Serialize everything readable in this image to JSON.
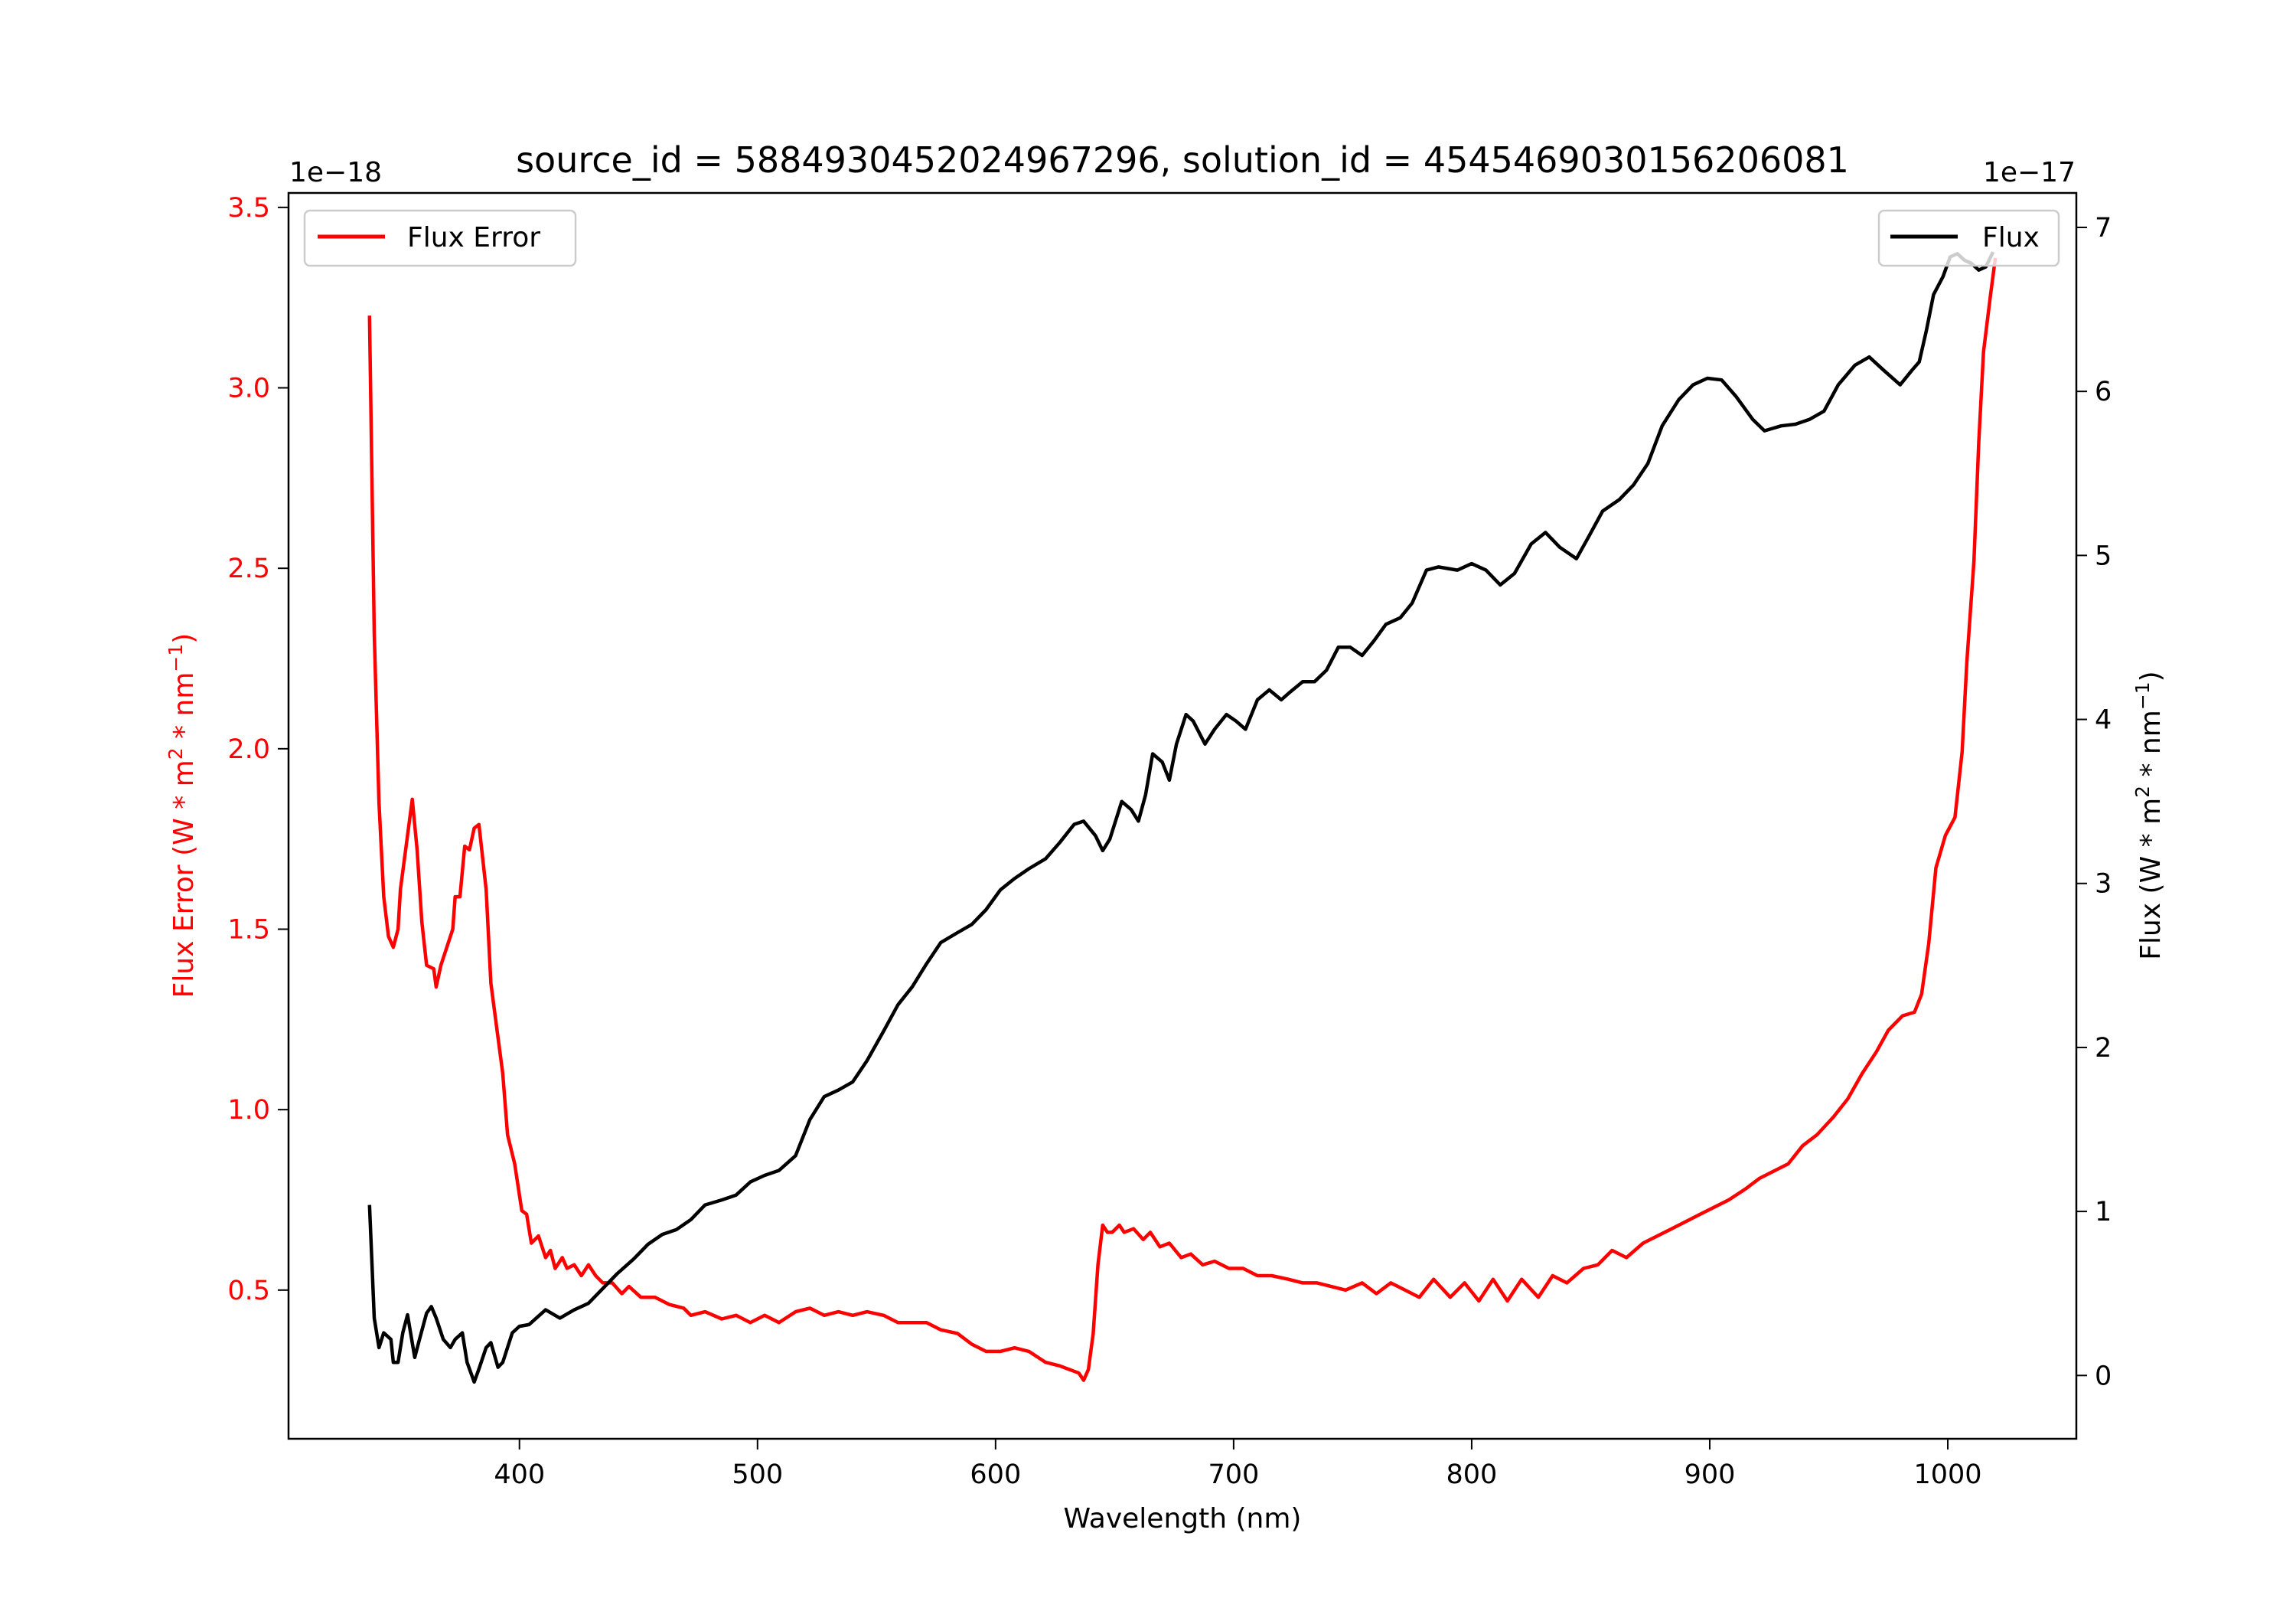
{
  "chart_data": {
    "type": "line",
    "title": "source_id = 5884930452024967296, solution_id = 4545469030156206081",
    "xlabel": "Wavelength (nm)",
    "xlim": [
      303,
      1054
    ],
    "xticks": [
      400,
      500,
      600,
      700,
      800,
      900,
      1000
    ],
    "left_axis": {
      "label_parts": {
        "prefix": "Flux Error (W * m",
        "sup1": "2",
        "mid": " * nm",
        "sup2": "−1",
        "suffix": ")"
      },
      "offset_text": "1e−18",
      "ylim": [
        0.088,
        3.54
      ],
      "ticks": [
        "0.5",
        "1.0",
        "1.5",
        "2.0",
        "2.5",
        "3.0",
        "3.5"
      ],
      "color": "#ff0000"
    },
    "right_axis": {
      "label_parts": {
        "prefix": "Flux (W * m",
        "sup1": "2",
        "mid": " * nm",
        "sup2": "−1",
        "suffix": ")"
      },
      "offset_text": "1e−17",
      "ylim": [
        -0.386,
        7.21
      ],
      "ticks": [
        "0",
        "1",
        "2",
        "3",
        "4",
        "5",
        "6",
        "7"
      ],
      "color": "#000000"
    },
    "legend": [
      {
        "label": "Flux Error",
        "color": "#ff0000",
        "placement": "upper-left"
      },
      {
        "label": "Flux",
        "color": "#000000",
        "placement": "upper-right"
      }
    ],
    "series": [
      {
        "name": "Flux Error",
        "axis": "left",
        "color": "#ff0000",
        "x": [
          337,
          339,
          341,
          343,
          345,
          347,
          349,
          350,
          352,
          355,
          357,
          359,
          361,
          364,
          365,
          367,
          370,
          372,
          373,
          375,
          377,
          379,
          381,
          383,
          386,
          388,
          391,
          393,
          395,
          398,
          401,
          403,
          405,
          408,
          411,
          413,
          415,
          418,
          420,
          423,
          426,
          429,
          432,
          435,
          439,
          443,
          446,
          451,
          457,
          463,
          469,
          472,
          478,
          485,
          491,
          497,
          503,
          509,
          516,
          522,
          528,
          534,
          540,
          546,
          553,
          559,
          565,
          571,
          577,
          584,
          590,
          596,
          602,
          608,
          614,
          621,
          627,
          635,
          637,
          639,
          641,
          643,
          645,
          647,
          649,
          652,
          654,
          658,
          662,
          665,
          669,
          673,
          678,
          682,
          687,
          692,
          698,
          704,
          710,
          716,
          723,
          729,
          735,
          741,
          747,
          754,
          760,
          766,
          772,
          778,
          784,
          791,
          797,
          803,
          809,
          815,
          821,
          828,
          834,
          840,
          847,
          853,
          859,
          865,
          872,
          878,
          884,
          890,
          896,
          902,
          908,
          915,
          921,
          927,
          933,
          939,
          945,
          952,
          958,
          964,
          970,
          975,
          981,
          986,
          989,
          992,
          995,
          999,
          1003,
          1006,
          1008,
          1011,
          1013,
          1015,
          1018,
          1020
        ],
        "y": [
          3.2,
          2.32,
          1.85,
          1.59,
          1.48,
          1.45,
          1.5,
          1.61,
          1.71,
          1.86,
          1.72,
          1.52,
          1.4,
          1.39,
          1.34,
          1.4,
          1.46,
          1.5,
          1.59,
          1.59,
          1.73,
          1.72,
          1.78,
          1.79,
          1.61,
          1.35,
          1.2,
          1.1,
          0.93,
          0.85,
          0.72,
          0.71,
          0.63,
          0.65,
          0.59,
          0.61,
          0.56,
          0.59,
          0.56,
          0.57,
          0.54,
          0.57,
          0.54,
          0.52,
          0.52,
          0.49,
          0.51,
          0.48,
          0.48,
          0.46,
          0.45,
          0.43,
          0.44,
          0.42,
          0.43,
          0.41,
          0.43,
          0.41,
          0.44,
          0.45,
          0.43,
          0.44,
          0.43,
          0.44,
          0.43,
          0.41,
          0.41,
          0.41,
          0.39,
          0.38,
          0.35,
          0.33,
          0.33,
          0.34,
          0.33,
          0.3,
          0.29,
          0.27,
          0.25,
          0.28,
          0.38,
          0.57,
          0.68,
          0.66,
          0.66,
          0.68,
          0.66,
          0.67,
          0.64,
          0.66,
          0.62,
          0.63,
          0.59,
          0.6,
          0.57,
          0.58,
          0.56,
          0.56,
          0.54,
          0.54,
          0.53,
          0.52,
          0.52,
          0.51,
          0.5,
          0.52,
          0.49,
          0.52,
          0.5,
          0.48,
          0.53,
          0.48,
          0.52,
          0.47,
          0.53,
          0.47,
          0.53,
          0.48,
          0.54,
          0.52,
          0.56,
          0.57,
          0.61,
          0.59,
          0.63,
          0.65,
          0.67,
          0.69,
          0.71,
          0.73,
          0.75,
          0.78,
          0.81,
          0.83,
          0.85,
          0.9,
          0.93,
          0.98,
          1.03,
          1.1,
          1.16,
          1.22,
          1.26,
          1.27,
          1.32,
          1.46,
          1.67,
          1.76,
          1.81,
          1.99,
          2.24,
          2.52,
          2.85,
          3.1,
          3.26,
          3.36
        ]
      },
      {
        "name": "Flux",
        "axis": "right",
        "color": "#000000",
        "x": [
          337,
          339,
          341,
          343,
          346,
          347,
          349,
          351,
          353,
          356,
          358,
          361,
          363,
          365,
          368,
          371,
          373,
          376,
          378,
          381,
          383,
          386,
          388,
          391,
          393,
          397,
          400,
          404,
          411,
          417,
          423,
          429,
          435,
          441,
          448,
          454,
          460,
          466,
          472,
          478,
          485,
          491,
          497,
          503,
          509,
          516,
          522,
          528,
          534,
          540,
          546,
          553,
          559,
          565,
          571,
          577,
          584,
          590,
          596,
          602,
          608,
          614,
          621,
          627,
          633,
          637,
          642,
          645,
          648,
          653,
          657,
          660,
          663,
          666,
          670,
          673,
          676,
          680,
          683,
          688,
          692,
          697,
          701,
          705,
          710,
          715,
          720,
          724,
          729,
          734,
          739,
          744,
          749,
          754,
          759,
          764,
          770,
          775,
          781,
          786,
          794,
          800,
          806,
          812,
          818,
          825,
          831,
          837,
          844,
          849,
          855,
          862,
          868,
          874,
          880,
          887,
          893,
          899,
          905,
          911,
          918,
          923,
          930,
          936,
          942,
          948,
          954,
          961,
          967,
          973,
          980,
          985,
          988,
          991,
          994,
          998,
          1001,
          1004,
          1007,
          1010,
          1013,
          1016,
          1019
        ],
        "y": [
          1.04,
          0.35,
          0.17,
          0.26,
          0.22,
          0.08,
          0.08,
          0.26,
          0.37,
          0.11,
          0.22,
          0.38,
          0.42,
          0.35,
          0.22,
          0.17,
          0.22,
          0.26,
          0.08,
          -0.04,
          0.04,
          0.17,
          0.2,
          0.05,
          0.08,
          0.26,
          0.3,
          0.31,
          0.4,
          0.35,
          0.4,
          0.44,
          0.53,
          0.62,
          0.71,
          0.8,
          0.86,
          0.89,
          0.95,
          1.04,
          1.07,
          1.1,
          1.18,
          1.22,
          1.25,
          1.34,
          1.56,
          1.7,
          1.74,
          1.79,
          1.92,
          2.1,
          2.26,
          2.37,
          2.51,
          2.64,
          2.7,
          2.75,
          2.84,
          2.96,
          3.03,
          3.09,
          3.15,
          3.25,
          3.36,
          3.38,
          3.29,
          3.2,
          3.27,
          3.5,
          3.45,
          3.38,
          3.54,
          3.79,
          3.74,
          3.63,
          3.85,
          4.03,
          3.99,
          3.85,
          3.94,
          4.03,
          3.99,
          3.94,
          4.12,
          4.18,
          4.12,
          4.17,
          4.23,
          4.23,
          4.3,
          4.44,
          4.44,
          4.39,
          4.48,
          4.58,
          4.62,
          4.71,
          4.91,
          4.93,
          4.91,
          4.95,
          4.91,
          4.82,
          4.89,
          5.07,
          5.14,
          5.05,
          4.98,
          5.11,
          5.27,
          5.34,
          5.43,
          5.56,
          5.79,
          5.95,
          6.04,
          6.08,
          6.07,
          5.97,
          5.83,
          5.76,
          5.79,
          5.8,
          5.83,
          5.88,
          6.04,
          6.16,
          6.21,
          6.13,
          6.04,
          6.13,
          6.18,
          6.37,
          6.59,
          6.7,
          6.82,
          6.84,
          6.8,
          6.78,
          6.74,
          6.76,
          6.85
        ]
      }
    ]
  }
}
